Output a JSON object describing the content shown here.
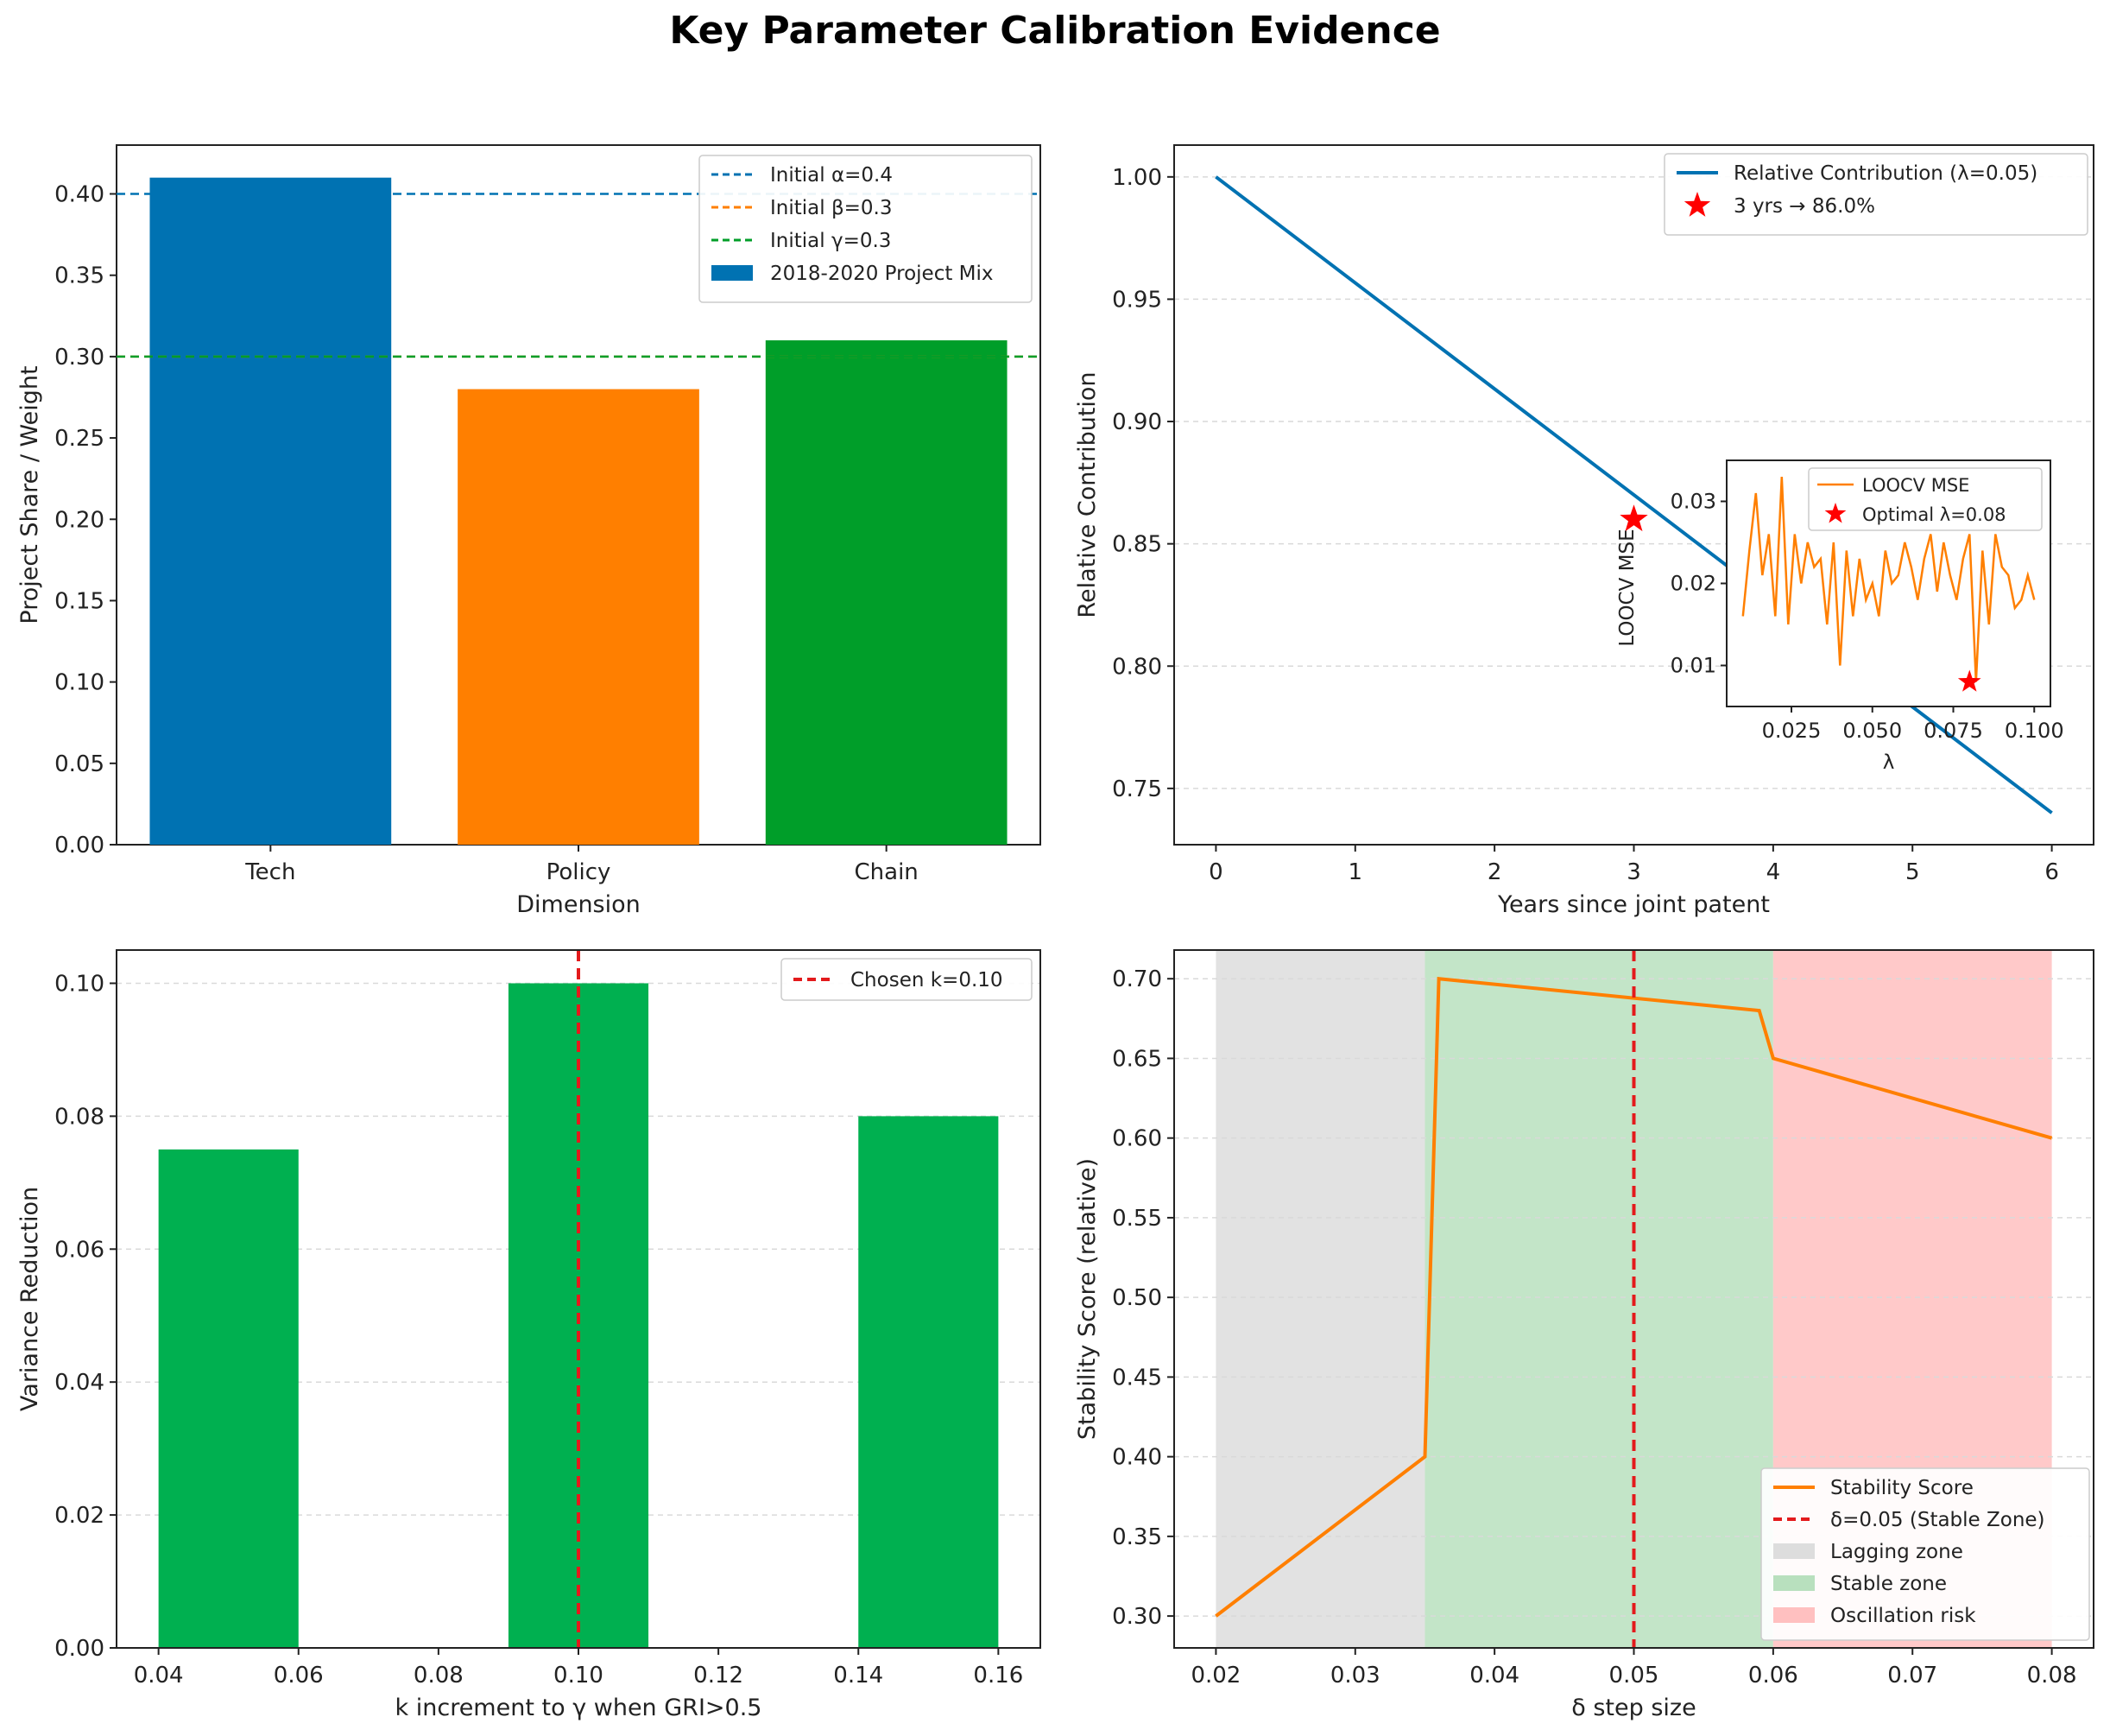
{
  "figure_title": "Key Parameter Calibration Evidence",
  "chart_data": [
    {
      "id": "weights",
      "type": "bar",
      "title": "",
      "xlabel": "Dimension",
      "ylabel": "Project Share / Weight",
      "categories": [
        "Tech",
        "Policy",
        "Chain"
      ],
      "values": [
        0.41,
        0.28,
        0.31
      ],
      "bar_colors": [
        "#0072B2",
        "#FF7F00",
        "#009E29"
      ],
      "ylim": [
        0,
        0.43
      ],
      "yticks": [
        "0.00",
        "0.05",
        "0.10",
        "0.15",
        "0.20",
        "0.25",
        "0.30",
        "0.35",
        "0.40"
      ],
      "ref_lines": [
        {
          "label": "Initial α=0.4",
          "value": 0.4,
          "color": "#0072B2"
        },
        {
          "label": "Initial β=0.3",
          "value": 0.3,
          "color": "#FF7F00"
        },
        {
          "label": "Initial γ=0.3",
          "value": 0.3,
          "color": "#009E29"
        }
      ],
      "bar_legend": "2018-2020 Project Mix",
      "legend": "top-right"
    },
    {
      "id": "decay",
      "type": "line",
      "title": "",
      "xlabel": "Years since joint patent",
      "ylabel": "Relative Contribution",
      "x": [
        0,
        6
      ],
      "y": [
        1.0,
        0.74
      ],
      "series_name": "Relative Contribution (λ=0.05)",
      "line_color": "#0072B2",
      "marker": {
        "x": 3,
        "y": 0.86,
        "label": "3 yrs → 86.0%"
      },
      "xlim": [
        -0.3,
        6.3
      ],
      "ylim": [
        0.727,
        1.013
      ],
      "xticks": [
        "0",
        "1",
        "2",
        "3",
        "4",
        "5",
        "6"
      ],
      "yticks": [
        "0.75",
        "0.80",
        "0.85",
        "0.90",
        "0.95",
        "1.00"
      ],
      "legend": "top-right",
      "inset": {
        "type": "line",
        "series_name": "LOOCV MSE",
        "xlabel": "λ",
        "ylabel": "LOOCV MSE",
        "line_color": "#FF7F00",
        "x": [
          0.01,
          0.012,
          0.014,
          0.016,
          0.018,
          0.02,
          0.022,
          0.024,
          0.026,
          0.028,
          0.03,
          0.032,
          0.034,
          0.036,
          0.038,
          0.04,
          0.042,
          0.044,
          0.046,
          0.048,
          0.05,
          0.052,
          0.054,
          0.056,
          0.058,
          0.06,
          0.062,
          0.064,
          0.066,
          0.068,
          0.07,
          0.072,
          0.074,
          0.076,
          0.078,
          0.08,
          0.082,
          0.084,
          0.086,
          0.088,
          0.09,
          0.092,
          0.094,
          0.096,
          0.098,
          0.1
        ],
        "y": [
          0.016,
          0.024,
          0.031,
          0.021,
          0.026,
          0.016,
          0.033,
          0.015,
          0.026,
          0.02,
          0.025,
          0.022,
          0.023,
          0.015,
          0.025,
          0.01,
          0.024,
          0.016,
          0.023,
          0.018,
          0.02,
          0.016,
          0.024,
          0.02,
          0.021,
          0.025,
          0.022,
          0.018,
          0.023,
          0.026,
          0.019,
          0.025,
          0.021,
          0.018,
          0.023,
          0.026,
          0.008,
          0.024,
          0.015,
          0.026,
          0.022,
          0.021,
          0.017,
          0.018,
          0.021,
          0.018
        ],
        "optimal": {
          "x": 0.08,
          "y": 0.008,
          "label": "Optimal λ=0.08"
        },
        "xlim": [
          0.005,
          0.105
        ],
        "ylim": [
          0.005,
          0.035
        ],
        "xticks": [
          "0.025",
          "0.050",
          "0.075",
          "0.100"
        ],
        "yticks": [
          "0.01",
          "0.02",
          "0.03"
        ]
      }
    },
    {
      "id": "kinc",
      "type": "bar",
      "title": "",
      "xlabel": "k increment to γ when GRI>0.5",
      "ylabel": "Variance Reduction",
      "x": [
        0.05,
        0.1,
        0.15
      ],
      "values": [
        0.075,
        0.1,
        0.08
      ],
      "bar_width": 0.02,
      "bar_color": "#00B050",
      "chosen": {
        "x": 0.1,
        "label": "Chosen k=0.10"
      },
      "xlim": [
        0.034,
        0.166
      ],
      "ylim": [
        0,
        0.105
      ],
      "xticks": [
        "0.04",
        "0.06",
        "0.08",
        "0.10",
        "0.12",
        "0.14",
        "0.16"
      ],
      "yticks": [
        "0.00",
        "0.02",
        "0.04",
        "0.06",
        "0.08",
        "0.10"
      ],
      "legend": "top-right"
    },
    {
      "id": "stability",
      "type": "line",
      "title": "",
      "xlabel": "δ step size",
      "ylabel": "Stability Score (relative)",
      "x": [
        0.02,
        0.035,
        0.036,
        0.059,
        0.06,
        0.08
      ],
      "y": [
        0.3,
        0.4,
        0.7,
        0.68,
        0.65,
        0.6
      ],
      "series_name": "Stability Score",
      "line_color": "#FF7F00",
      "chosen": {
        "x": 0.05,
        "label": "δ=0.05 (Stable Zone)"
      },
      "zones": [
        {
          "label": "Lagging zone",
          "from": 0.02,
          "to": 0.035,
          "color": "#DDDDDD"
        },
        {
          "label": "Stable zone",
          "from": 0.035,
          "to": 0.06,
          "color": "#B8E0BE"
        },
        {
          "label": "Oscillation risk",
          "from": 0.06,
          "to": 0.08,
          "color": "#FFC0C0"
        }
      ],
      "xlim": [
        0.017,
        0.083
      ],
      "ylim": [
        0.28,
        0.718
      ],
      "xticks": [
        "0.02",
        "0.03",
        "0.04",
        "0.05",
        "0.06",
        "0.07",
        "0.08"
      ],
      "yticks": [
        "0.30",
        "0.35",
        "0.40",
        "0.45",
        "0.50",
        "0.55",
        "0.60",
        "0.65",
        "0.70"
      ],
      "legend": "bottom-right"
    }
  ]
}
